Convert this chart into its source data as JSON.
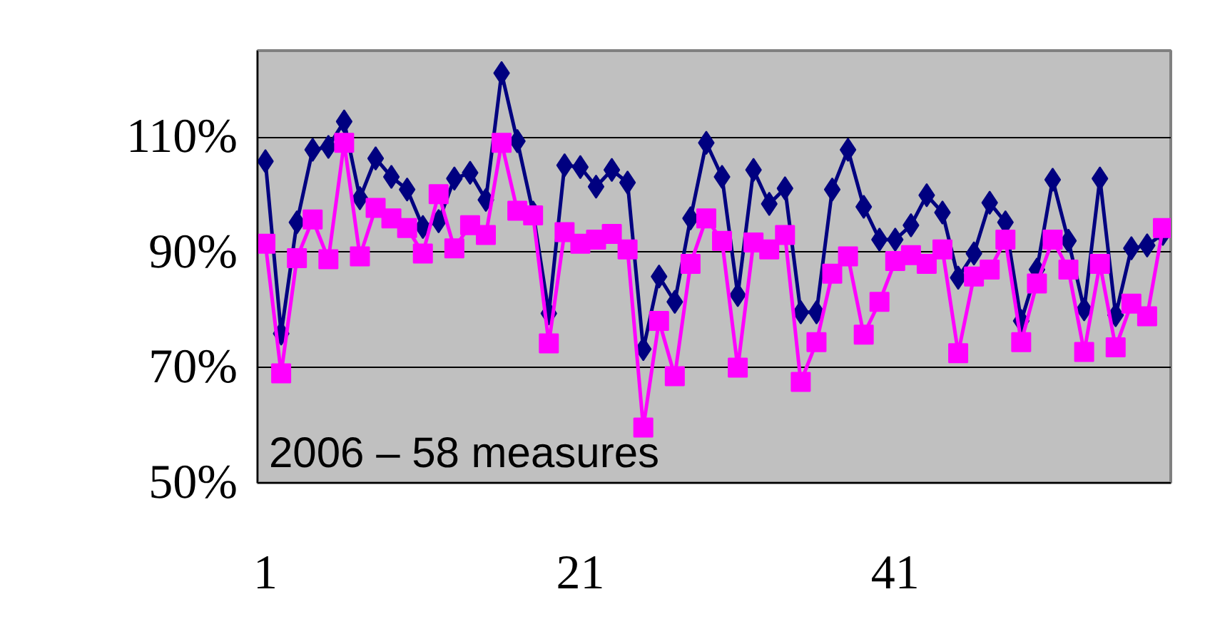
{
  "chart_data": {
    "type": "line",
    "x": [
      1,
      2,
      3,
      4,
      5,
      6,
      7,
      8,
      9,
      10,
      11,
      12,
      13,
      14,
      15,
      16,
      17,
      18,
      19,
      20,
      21,
      22,
      23,
      24,
      25,
      26,
      27,
      28,
      29,
      30,
      31,
      32,
      33,
      34,
      35,
      36,
      37,
      38,
      39,
      40,
      41,
      42,
      43,
      44,
      45,
      46,
      47,
      48,
      49,
      50,
      51,
      52,
      53,
      54,
      55,
      56,
      57,
      58
    ],
    "series": [
      {
        "color": "#000080",
        "marker": "diamond",
        "values": [
          105.8,
          75.9,
          95.2,
          107.8,
          108.3,
          112.7,
          99.4,
          106.3,
          103.1,
          100.9,
          94.4,
          95.4,
          102.8,
          103.8,
          99.1,
          121.1,
          109.3,
          96.9,
          79.4,
          105.1,
          104.8,
          101.4,
          104.3,
          102.1,
          73.2,
          85.8,
          81.4,
          95.9,
          109,
          103.1,
          82.6,
          104.3,
          98.4,
          101.1,
          79.6,
          79.6,
          100.9,
          107.8,
          97.9,
          92.2,
          92.2,
          94.7,
          99.9,
          96.9,
          85.6,
          89.8,
          98.6,
          95.2,
          78.1,
          87,
          102.6,
          92,
          80.1,
          102.8,
          79.1,
          90.7,
          91.2,
          93.2
        ]
      },
      {
        "color": "#ff00ff",
        "marker": "square",
        "values": [
          91.5,
          69,
          89,
          95.7,
          88.8,
          109,
          89.3,
          97.7,
          95.9,
          94.2,
          89.8,
          100.1,
          90.7,
          94.7,
          93,
          109,
          97.2,
          96.4,
          74.2,
          93.5,
          91.5,
          92.2,
          93.2,
          90.5,
          59.6,
          78.1,
          68.5,
          88,
          95.9,
          92,
          70,
          91.7,
          90.5,
          93,
          67.5,
          74.4,
          86.3,
          89.3,
          75.7,
          81.4,
          88.5,
          89.5,
          88,
          90.5,
          72.5,
          85.8,
          87,
          92.2,
          74.4,
          84.6,
          92.2,
          87,
          72.7,
          88,
          73.5,
          81.1,
          78.9,
          94.2
        ]
      }
    ],
    "xlim": [
      0.5,
      58.5
    ],
    "xticks": [
      1,
      21,
      41
    ],
    "ylim": [
      50,
      125
    ],
    "yticks": [
      {
        "value": 50,
        "label": "50%"
      },
      {
        "value": 70,
        "label": "70%"
      },
      {
        "value": 90,
        "label": "90%"
      },
      {
        "value": 110,
        "label": "110%"
      }
    ],
    "grid": "y",
    "line_style": "solid",
    "annotations": [
      "2006 – 58 measures"
    ]
  }
}
